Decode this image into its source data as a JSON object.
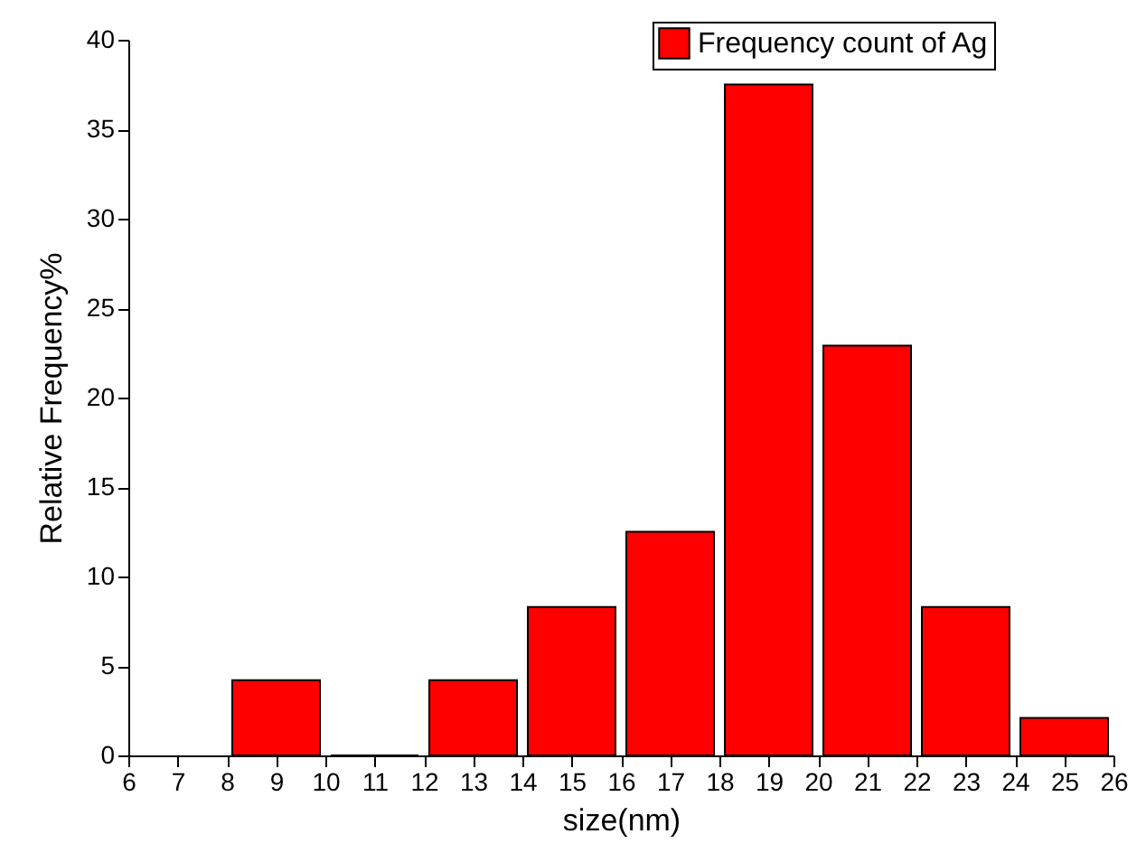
{
  "chart_data": {
    "type": "histogram",
    "xlabel": "size(nm)",
    "ylabel": "Relative Frequency%",
    "bins": [
      8,
      10,
      12,
      14,
      16,
      18,
      20,
      22,
      24,
      26
    ],
    "series": [
      {
        "name": "Frequency count of Ag",
        "color": "#ff0000",
        "values": [
          4.2,
          0,
          4.2,
          8.3,
          12.5,
          37.5,
          22.9,
          8.3,
          2.1
        ]
      }
    ],
    "xlim": [
      6,
      26
    ],
    "xticks": [
      6,
      7,
      8,
      9,
      10,
      11,
      12,
      13,
      14,
      15,
      16,
      17,
      18,
      19,
      20,
      21,
      22,
      23,
      24,
      25,
      26
    ],
    "ylim": [
      0,
      40
    ],
    "yticks": [
      0,
      5,
      10,
      15,
      20,
      25,
      30,
      35,
      40
    ],
    "grid": false,
    "legend": "top right"
  }
}
